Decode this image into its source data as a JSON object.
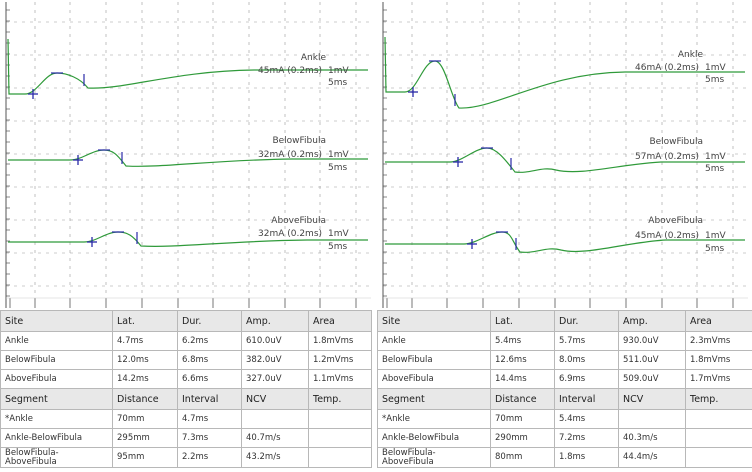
{
  "chart_data": [
    {
      "type": "line",
      "traces": [
        {
          "site": "Ankle",
          "stimulus": "45mA (0.2ms)",
          "sensitivity": "1mV",
          "sweep": "5ms"
        },
        {
          "site": "BelowFibula",
          "stimulus": "32mA (0.2ms)",
          "sensitivity": "1mV",
          "sweep": "5ms"
        },
        {
          "site": "AboveFibula",
          "stimulus": "32mA (0.2ms)",
          "sensitivity": "1mV",
          "sweep": "5ms"
        }
      ],
      "table": {
        "headers": [
          "Site",
          "Lat.",
          "Dur.",
          "Amp.",
          "Area"
        ],
        "rows": [
          [
            "Ankle",
            "4.7ms",
            "6.2ms",
            "610.0uV",
            "1.8mVms"
          ],
          [
            "BelowFibula",
            "12.0ms",
            "6.8ms",
            "382.0uV",
            "1.2mVms"
          ],
          [
            "AboveFibula",
            "14.2ms",
            "6.6ms",
            "327.0uV",
            "1.1mVms"
          ]
        ],
        "seg_headers": [
          "Segment",
          "Distance",
          "Interval",
          "NCV",
          "Temp."
        ],
        "seg_rows": [
          [
            "*Ankle",
            "70mm",
            "4.7ms",
            "",
            ""
          ],
          [
            "Ankle-BelowFibula",
            "295mm",
            "7.3ms",
            "40.7m/s",
            ""
          ],
          [
            "BelowFibula-AboveFibula",
            "95mm",
            "2.2ms",
            "43.2m/s",
            ""
          ]
        ]
      }
    },
    {
      "type": "line",
      "traces": [
        {
          "site": "Ankle",
          "stimulus": "46mA (0.2ms)",
          "sensitivity": "1mV",
          "sweep": "5ms"
        },
        {
          "site": "BelowFibula",
          "stimulus": "57mA (0.2ms)",
          "sensitivity": "1mV",
          "sweep": "5ms"
        },
        {
          "site": "AboveFibula",
          "stimulus": "45mA (0.2ms)",
          "sensitivity": "1mV",
          "sweep": "5ms"
        }
      ],
      "table": {
        "headers": [
          "Site",
          "Lat.",
          "Dur.",
          "Amp.",
          "Area"
        ],
        "rows": [
          [
            "Ankle",
            "5.4ms",
            "5.7ms",
            "930.0uV",
            "2.3mVms"
          ],
          [
            "BelowFibula",
            "12.6ms",
            "8.0ms",
            "511.0uV",
            "1.8mVms"
          ],
          [
            "AboveFibula",
            "14.4ms",
            "6.9ms",
            "509.0uV",
            "1.7mVms"
          ]
        ],
        "seg_headers": [
          "Segment",
          "Distance",
          "Interval",
          "NCV",
          "Temp."
        ],
        "seg_rows": [
          [
            "*Ankle",
            "70mm",
            "5.4ms",
            "",
            ""
          ],
          [
            "Ankle-BelowFibula",
            "290mm",
            "7.2ms",
            "40.3m/s",
            ""
          ],
          [
            "BelowFibula-AboveFibula",
            "80mm",
            "1.8ms",
            "44.4m/s",
            ""
          ]
        ]
      }
    }
  ],
  "colors": {
    "trace": "#2f9a3a",
    "marker": "#2a2aa8",
    "grid": "#9a9a9a",
    "axis": "#555555",
    "header_bg": "#e8e8e8"
  }
}
